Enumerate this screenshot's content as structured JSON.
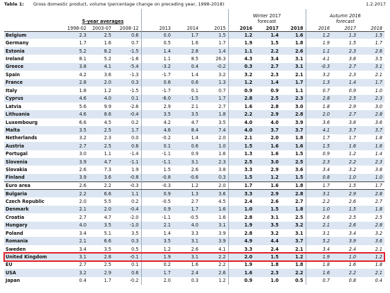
{
  "header": {
    "label": "Table 1:",
    "title": "Gross domestic product, volume (percentage change on preceding year, 1998-2018)",
    "date": "1.2.2017"
  },
  "columns": {
    "groups": [
      "5-year averages",
      "Winter 2017 forecast",
      "Autumn 2016 forecast"
    ],
    "years": [
      "1998-02",
      "2003-07",
      "2008-12",
      "2013",
      "2014",
      "2015",
      "2016",
      "2017",
      "2018",
      "2016",
      "2017",
      "2018"
    ]
  },
  "table": {
    "rows": [
      {
        "country": "Belgium",
        "values": [
          "2.3",
          "2.5",
          "0.6",
          "0.0",
          "1.7",
          "1.5",
          "1.2",
          "1.4",
          "1.6",
          "1.2",
          "1.3",
          "1.5"
        ]
      },
      {
        "country": "Germany",
        "values": [
          "1.7",
          "1.6",
          "0.7",
          "0.5",
          "1.6",
          "1.7",
          "1.9",
          "1.5",
          "1.8",
          "1.9",
          "1.5",
          "1.7"
        ]
      },
      {
        "country": "Estonia",
        "values": [
          "5.2",
          "8.2",
          "-1.5",
          "1.4",
          "2.8",
          "1.4",
          "1.1",
          "2.2",
          "2.6",
          "1.1",
          "2.3",
          "2.6"
        ]
      },
      {
        "country": "Ireland",
        "values": [
          "8.1",
          "5.2",
          "-1.6",
          "1.1",
          "8.5",
          "26.3",
          "4.3",
          "3.4",
          "3.1",
          "4.1",
          "3.6",
          "3.5"
        ]
      },
      {
        "country": "Greece",
        "values": [
          "3.8",
          "4.1",
          "-5.4",
          "-3.2",
          "0.4",
          "-0.2",
          "0.3",
          "2.7",
          "3.1",
          "-0.3",
          "2.7",
          "3.1"
        ]
      },
      {
        "country": "Spain",
        "values": [
          "4.2",
          "3.6",
          "-1.3",
          "-1.7",
          "1.4",
          "3.2",
          "3.2",
          "2.3",
          "2.1",
          "3.2",
          "2.3",
          "2.1"
        ]
      },
      {
        "country": "France",
        "values": [
          "2.8",
          "2.0",
          "0.3",
          "0.6",
          "0.6",
          "1.3",
          "1.2",
          "1.4",
          "1.7",
          "1.3",
          "1.4",
          "1.7"
        ]
      },
      {
        "country": "Italy",
        "values": [
          "1.8",
          "1.2",
          "-1.5",
          "-1.7",
          "0.1",
          "0.7",
          "0.9",
          "0.9",
          "1.1",
          "0.7",
          "0.9",
          "1.0"
        ]
      },
      {
        "country": "Cyprus",
        "values": [
          "4.6",
          "4.0",
          "0.1",
          "-6.0",
          "-1.5",
          "1.7",
          "2.8",
          "2.5",
          "2.3",
          "2.8",
          "2.5",
          "2.3"
        ]
      },
      {
        "country": "Latvia",
        "values": [
          "5.6",
          "9.9",
          "-2.6",
          "2.9",
          "2.1",
          "2.7",
          "1.6",
          "2.8",
          "3.0",
          "1.8",
          "2.9",
          "3.0"
        ]
      },
      {
        "country": "Lithuania",
        "values": [
          "4.6",
          "8.6",
          "-0.4",
          "3.5",
          "3.5",
          "1.8",
          "2.2",
          "2.9",
          "2.8",
          "2.0",
          "2.7",
          "2.8"
        ]
      },
      {
        "country": "Luxembourg",
        "values": [
          "6.6",
          "4.5",
          "0.2",
          "4.2",
          "4.7",
          "3.5",
          "4.0",
          "4.0",
          "3.9",
          "3.6",
          "3.6",
          "3.6"
        ]
      },
      {
        "country": "Malta",
        "values": [
          "3.5",
          "2.5",
          "1.7",
          "4.6",
          "8.4",
          "7.4",
          "4.0",
          "3.7",
          "3.7",
          "4.1",
          "3.7",
          "3.7"
        ]
      },
      {
        "country": "Netherlands",
        "values": [
          "3.2",
          "2.3",
          "0.0",
          "-0.2",
          "1.4",
          "2.0",
          "2.1",
          "2.0",
          "1.8",
          "1.7",
          "1.7",
          "1.8"
        ]
      },
      {
        "country": "Austria",
        "values": [
          "2.7",
          "2.5",
          "0.6",
          "0.1",
          "0.6",
          "1.0",
          "1.5",
          "1.6",
          "1.6",
          "1.5",
          "1.6",
          "1.6"
        ]
      },
      {
        "country": "Portugal",
        "values": [
          "3.0",
          "1.1",
          "-1.4",
          "-1.1",
          "0.9",
          "1.6",
          "1.3",
          "1.6",
          "1.5",
          "0.9",
          "1.2",
          "1.4"
        ]
      },
      {
        "country": "Slovenia",
        "values": [
          "3.9",
          "4.7",
          "-1.1",
          "-1.1",
          "3.1",
          "2.3",
          "2.5",
          "3.0",
          "2.5",
          "2.3",
          "2.2",
          "2.3"
        ]
      },
      {
        "country": "Slovakia",
        "values": [
          "2.6",
          "7.3",
          "1.9",
          "1.5",
          "2.6",
          "3.8",
          "3.3",
          "2.9",
          "3.6",
          "3.4",
          "3.2",
          "3.8"
        ]
      },
      {
        "country": "Finland",
        "values": [
          "3.9",
          "3.6",
          "-0.8",
          "-0.8",
          "-0.6",
          "0.3",
          "1.5",
          "1.2",
          "1.5",
          "0.8",
          "1.0",
          "1.0"
        ]
      },
      {
        "country": "Euro area",
        "values": [
          "2.6",
          "2.2",
          "-0.3",
          "-0.3",
          "1.2",
          "2.0",
          "1.7",
          "1.6",
          "1.8",
          "1.7",
          "1.5",
          "1.7"
        ]
      },
      {
        "country": "Bulgaria",
        "values": [
          "2.2",
          "6.6",
          "1.1",
          "0.9",
          "1.3",
          "3.6",
          "3.3",
          "2.9",
          "2.8",
          "3.1",
          "2.9",
          "2.8"
        ]
      },
      {
        "country": "Czech Republic",
        "values": [
          "2.0",
          "5.5",
          "0.2",
          "-0.5",
          "2.7",
          "4.5",
          "2.4",
          "2.6",
          "2.7",
          "2.2",
          "2.6",
          "2.7"
        ]
      },
      {
        "country": "Denmark",
        "values": [
          "2.1",
          "2.0",
          "-0.4",
          "0.9",
          "1.7",
          "1.6",
          "1.0",
          "1.5",
          "1.8",
          "1.0",
          "1.5",
          "1.8"
        ]
      },
      {
        "country": "Croatia",
        "values": [
          "2.7",
          "4.7",
          "-2.0",
          "-1.1",
          "-0.5",
          "1.6",
          "2.8",
          "3.1",
          "2.5",
          "2.6",
          "2.5",
          "2.5"
        ]
      },
      {
        "country": "Hungary",
        "values": [
          "4.0",
          "3.5",
          "-1.0",
          "2.1",
          "4.0",
          "3.1",
          "1.9",
          "3.5",
          "3.2",
          "2.1",
          "2.6",
          "2.8"
        ]
      },
      {
        "country": "Poland",
        "values": [
          "3.4",
          "5.1",
          "3.5",
          "1.4",
          "3.3",
          "3.9",
          "2.8",
          "3.2",
          "3.1",
          "3.1",
          "3.4",
          "3.2"
        ]
      },
      {
        "country": "Romania",
        "values": [
          "2.1",
          "6.6",
          "0.3",
          "3.5",
          "3.1",
          "3.9",
          "4.9",
          "4.4",
          "3.7",
          "5.2",
          "3.9",
          "3.6"
        ]
      },
      {
        "country": "Sweden",
        "values": [
          "3.4",
          "3.5",
          "0.5",
          "1.2",
          "2.6",
          "4.1",
          "3.3",
          "2.4",
          "2.1",
          "3.4",
          "2.4",
          "2.1"
        ]
      },
      {
        "country": "United Kingdom",
        "values": [
          "3.1",
          "2.8",
          "-0.1",
          "1.9",
          "3.1",
          "2.2",
          "2.0",
          "1.5",
          "1.2",
          "1.9",
          "1.0",
          "1.2"
        ]
      },
      {
        "country": "EU",
        "values": [
          "2.7",
          "2.5",
          "0.1",
          "0.2",
          "1.6",
          "2.2",
          "1.9",
          "1.8",
          "1.8",
          "1.8",
          "1.6",
          "1.8"
        ]
      },
      {
        "country": "USA",
        "values": [
          "3.2",
          "2.9",
          "0.6",
          "1.7",
          "2.4",
          "2.6",
          "1.6",
          "2.3",
          "2.2",
          "1.6",
          "2.2",
          "2.1"
        ]
      },
      {
        "country": "Japan",
        "values": [
          "0.4",
          "1.7",
          "-0.2",
          "2.0",
          "0.3",
          "1.2",
          "0.9",
          "1.0",
          "0.5",
          "0.7",
          "0.8",
          "0.4"
        ]
      }
    ]
  }
}
